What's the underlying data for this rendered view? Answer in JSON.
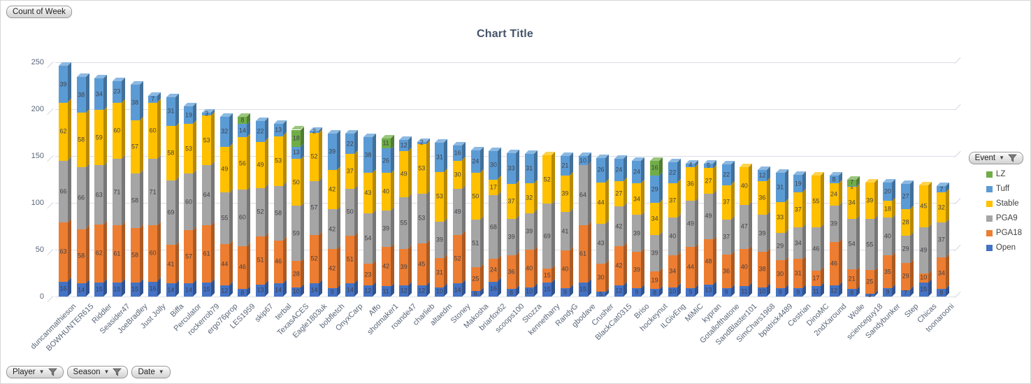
{
  "field_buttons": {
    "value": "Count of Week",
    "legend": "Event",
    "axis": [
      {
        "label": "Player",
        "icon": "filter-icon"
      },
      {
        "label": "Season",
        "icon": "filter-icon"
      },
      {
        "label": "Date",
        "icon": "dropdown-icon"
      }
    ]
  },
  "chart_data": {
    "type": "bar",
    "stacked": true,
    "effect_3d": true,
    "title": "Chart Title",
    "ylim": [
      0,
      250
    ],
    "yticks": [
      0,
      50,
      100,
      150,
      200,
      250
    ],
    "grid": true,
    "data_labels": true,
    "legend_position": "right",
    "legend_order": [
      "LZ",
      "Tuff",
      "Stable",
      "PGA9",
      "PGA18",
      "Open"
    ],
    "stack_order": [
      "Open",
      "PGA18",
      "PGA9",
      "Stable",
      "Tuff",
      "LZ"
    ],
    "series_colors": {
      "Open": "#4472C4",
      "PGA18": "#ED7D31",
      "PGA9": "#A5A5A5",
      "Stable": "#FFC000",
      "Tuff": "#5B9BD5",
      "LZ": "#70AD47"
    },
    "label_color": "#3f3f46",
    "categories": [
      "duncanmathieson",
      "BOWHUNTER615",
      "Riddler",
      "Seasider47",
      "JoeBradley",
      "Just Jolly",
      "Biffa",
      "Perculator",
      "rockerrob79",
      "ergo76prop",
      "LES1959",
      "skip67",
      "terbal",
      "TexasACES",
      "Eagle1803uk",
      "bobfletch",
      "OnyxCarp",
      "Affo",
      "shotmaker1",
      "roande47",
      "charlieb",
      "altaedm",
      "Stoney",
      "Makosha",
      "briarfox62",
      "scoops100",
      "Stozza",
      "kennetharry",
      "RandyG",
      "gbodave",
      "Crusher",
      "BlackCat0315",
      "Briso",
      "hockeynut",
      "ILGivEng",
      "MiMiC",
      "kypran",
      "Gotallofthatone",
      "SandBlaster101",
      "SimChars1968",
      "bpatrick4489",
      "Cestrian",
      "DinoMC",
      "2ndXaround",
      "Wolle",
      "scienceguy18",
      "Sandybunker",
      "Step",
      "Chicas",
      "toonarooni"
    ],
    "series": [
      {
        "name": "Open",
        "values": [
          16,
          14,
          15,
          15,
          15,
          16,
          14,
          14,
          15,
          12,
          8,
          13,
          14,
          10,
          14,
          9,
          14,
          12,
          11,
          12,
          12,
          10,
          14,
          6,
          16,
          8,
          10,
          15,
          9,
          15,
          5,
          12,
          9,
          8,
          10,
          9,
          13,
          9,
          11,
          10,
          9,
          9,
          11,
          12,
          8,
          3,
          9,
          7,
          15,
          8
        ]
      },
      {
        "name": "PGA18",
        "values": [
          63,
          58,
          62,
          61,
          58,
          60,
          41,
          57,
          61,
          44,
          46,
          51,
          46,
          28,
          52,
          42,
          51,
          23,
          42,
          39,
          45,
          31,
          52,
          25,
          24,
          36,
          40,
          15,
          40,
          61,
          30,
          42,
          39,
          19,
          34,
          44,
          48,
          36,
          40,
          38,
          30,
          31,
          17,
          46,
          21,
          25,
          35,
          29,
          10,
          34
        ]
      },
      {
        "name": "PGA9",
        "values": [
          66,
          66,
          63,
          71,
          58,
          71,
          69,
          60,
          64,
          55,
          60,
          52,
          58,
          59,
          57,
          42,
          50,
          54,
          39,
          55,
          53,
          39,
          49,
          51,
          68,
          39,
          39,
          69,
          41,
          64,
          43,
          42,
          39,
          39,
          40,
          49,
          49,
          37,
          47,
          39,
          29,
          34,
          46,
          39,
          54,
          55,
          40,
          29,
          49,
          37
        ]
      },
      {
        "name": "Stable",
        "values": [
          62,
          58,
          59,
          60,
          57,
          60,
          58,
          53,
          53,
          49,
          56,
          49,
          53,
          50,
          52,
          42,
          37,
          43,
          40,
          49,
          53,
          53,
          30,
          50,
          17,
          37,
          32,
          52,
          39,
          0,
          44,
          27,
          34,
          34,
          37,
          36,
          27,
          37,
          40,
          36,
          33,
          37,
          55,
          24,
          34,
          39,
          18,
          28,
          45,
          32
        ]
      },
      {
        "name": "Tuff",
        "values": [
          39,
          38,
          34,
          23,
          38,
          7,
          31,
          19,
          3,
          32,
          14,
          22,
          13,
          13,
          2,
          39,
          22,
          38,
          26,
          12,
          2,
          31,
          16,
          24,
          30,
          33,
          31,
          0,
          21,
          10,
          26,
          24,
          24,
          29,
          22,
          4,
          5,
          22,
          0,
          12,
          31,
          19,
          0,
          8,
          1,
          0,
          20,
          27,
          0,
          7
        ]
      },
      {
        "name": "LZ",
        "values": [
          0,
          0,
          0,
          0,
          0,
          0,
          0,
          0,
          0,
          0,
          8,
          0,
          0,
          18,
          0,
          0,
          0,
          0,
          11,
          0,
          0,
          0,
          0,
          0,
          0,
          0,
          0,
          0,
          0,
          0,
          0,
          0,
          0,
          16,
          0,
          0,
          0,
          0,
          0,
          0,
          0,
          0,
          0,
          0,
          7,
          0,
          0,
          0,
          0,
          0
        ]
      }
    ]
  }
}
